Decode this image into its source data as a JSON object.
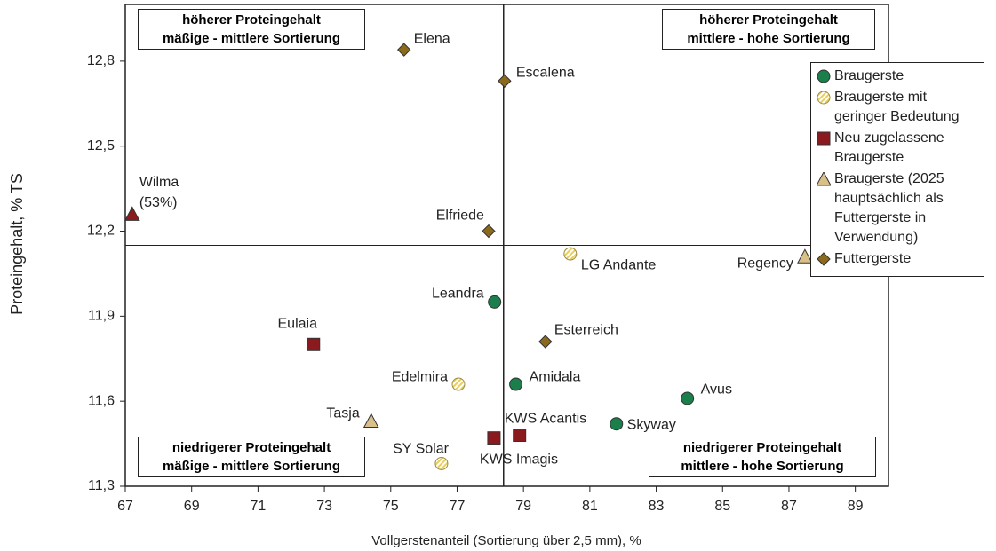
{
  "chart_data": {
    "type": "scatter",
    "xlabel": "Vollgerstenanteil (Sortierung über 2,5 mm), %",
    "ylabel": "Proteingehalt, % TS",
    "xlim": [
      67,
      90
    ],
    "xticks": [
      67,
      69,
      71,
      73,
      75,
      77,
      79,
      81,
      83,
      85,
      87,
      89
    ],
    "ylim": [
      11.3,
      13.0
    ],
    "yticks": [
      {
        "value": 11.3,
        "label": "11,3"
      },
      {
        "value": 11.6,
        "label": "11,6"
      },
      {
        "value": 11.9,
        "label": "11,9"
      },
      {
        "value": 12.2,
        "label": "12,2"
      },
      {
        "value": 12.5,
        "label": "12,5"
      },
      {
        "value": 12.8,
        "label": "12,8"
      }
    ],
    "vline": 78.4,
    "hline": 12.15,
    "quadrants": [
      {
        "corner": "top-left",
        "lines": [
          "höherer Proteingehalt",
          "mäßige - mittlere Sortierung"
        ]
      },
      {
        "corner": "top-right",
        "lines": [
          "höherer Proteingehalt",
          "mittlere - hohe Sortierung"
        ]
      },
      {
        "corner": "bottom-left",
        "lines": [
          "niedrigerer Proteingehalt",
          "mäßige - mittlere Sortierung"
        ]
      },
      {
        "corner": "bottom-right",
        "lines": [
          "niedrigerer Proteingehalt",
          "mittlere - hohe Sortierung"
        ]
      }
    ],
    "legend_position": "upper right",
    "series": [
      {
        "name": "Braugerste",
        "marker": "circle",
        "color": "#1b7f4c",
        "x": [
          78.13,
          78.77,
          81.8,
          83.94
        ],
        "y": [
          11.95,
          11.66,
          11.52,
          11.61
        ],
        "labels": [
          "Leandra",
          "Amidala",
          "Skyway",
          "Avus"
        ]
      },
      {
        "name": "Braugerste mit geringer Bedeutung",
        "marker": "hatched-circle",
        "color": "#e8cf5a",
        "x": [
          80.41,
          77.04,
          76.53
        ],
        "y": [
          12.12,
          11.66,
          11.38
        ],
        "labels": [
          "LG Andante",
          "Edelmira",
          "SY Solar"
        ]
      },
      {
        "name": "Neu zugelassene Braugerste",
        "marker": "square",
        "color": "#8b1a1f",
        "x": [
          72.67,
          78.11,
          78.88
        ],
        "y": [
          11.8,
          11.47,
          11.48
        ],
        "labels": [
          "Eulaia",
          "KWS Imagis",
          "KWS Acantis"
        ]
      },
      {
        "name": "Braugerste (2025 hauptsächlich als Futtergerste in Verwendung)",
        "marker": "triangle",
        "color": "#d9c088",
        "colors": [
          "#d9c088",
          "#d9c088",
          "#8b1a1f"
        ],
        "x": [
          74.41,
          87.48,
          67.21
        ],
        "y": [
          11.53,
          12.11,
          12.26
        ],
        "labels": [
          "Tasja",
          "Regency",
          "Wilma (53%)"
        ]
      },
      {
        "name": "Futtergerste",
        "marker": "diamond",
        "color": "#8b6a1c",
        "x": [
          75.4,
          78.43,
          77.95,
          79.66
        ],
        "y": [
          12.84,
          12.73,
          12.2,
          11.81
        ],
        "labels": [
          "Elena",
          "Escalena",
          "Elfriede",
          "Esterreich"
        ]
      }
    ]
  }
}
